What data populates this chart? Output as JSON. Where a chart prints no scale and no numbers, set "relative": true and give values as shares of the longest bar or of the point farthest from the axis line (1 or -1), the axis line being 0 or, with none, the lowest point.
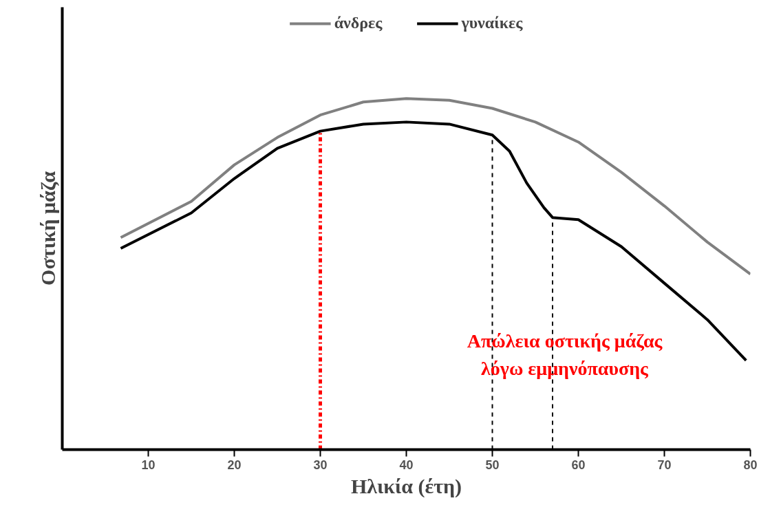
{
  "chart_data": {
    "type": "line",
    "relative": true,
    "xlabel": "Ηλικία (έτη)",
    "ylabel": "Οστική μάζα",
    "xlim": [
      0,
      80
    ],
    "xticks": [
      10,
      20,
      30,
      40,
      50,
      60,
      70,
      80
    ],
    "legend": "top",
    "grid": false,
    "series": [
      {
        "name": "άνδρες",
        "color": "#808080",
        "x": [
          6.8,
          15,
          20,
          25,
          30,
          35,
          40,
          45,
          50,
          55,
          60,
          65,
          70,
          75,
          80
        ],
        "values": [
          0.604,
          0.707,
          0.811,
          0.889,
          0.953,
          0.99,
          1.0,
          0.995,
          0.972,
          0.933,
          0.876,
          0.79,
          0.694,
          0.591,
          0.5
        ]
      },
      {
        "name": "γυναίκες",
        "color": "#000000",
        "x": [
          6.8,
          15,
          20,
          25,
          30,
          35,
          40,
          45,
          50,
          52,
          54,
          56,
          57,
          60,
          65,
          70,
          75,
          79.5
        ],
        "values": [
          0.573,
          0.674,
          0.772,
          0.858,
          0.907,
          0.927,
          0.933,
          0.927,
          0.896,
          0.85,
          0.759,
          0.689,
          0.661,
          0.655,
          0.578,
          0.474,
          0.37,
          0.254
        ]
      }
    ],
    "ref_lines": [
      {
        "axis": "x",
        "value": 30,
        "color": "#ff0000",
        "line_style": "dashdot"
      },
      {
        "axis": "x",
        "value": 50,
        "color": "#000000",
        "line_style": "dashed"
      },
      {
        "axis": "x",
        "value": 57,
        "color": "#000000",
        "line_style": "dashed"
      }
    ],
    "annotations": [
      "Απώλεια οστικής μάζας\nλόγω εμμηνόπαυσης"
    ]
  }
}
